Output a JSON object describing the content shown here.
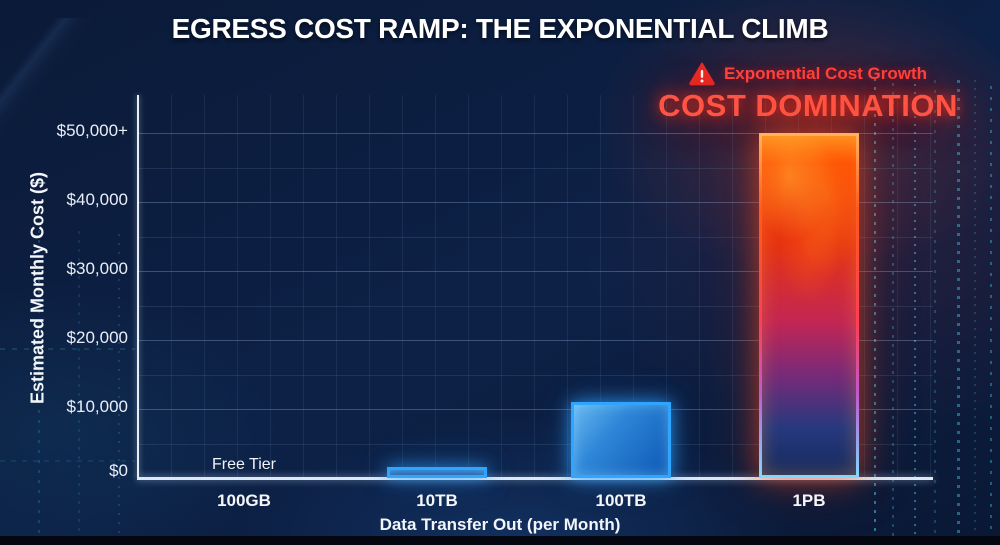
{
  "header": {
    "title": "EGRESS COST RAMP: THE EXPONENTIAL CLIMB"
  },
  "callouts": {
    "warning_label": "Exponential Cost Growth",
    "domination_label": "COST DOMINATION",
    "free_tier_label": "Free Tier"
  },
  "chart_data": {
    "type": "bar",
    "title": "EGRESS COST RAMP: THE EXPONENTIAL CLIMB",
    "xlabel": "Data Transfer Out (per Month)",
    "ylabel": "Estimated Monthly Cost ($)",
    "categories": [
      "100GB",
      "10TB",
      "100TB",
      "1PB"
    ],
    "values": [
      0,
      1600,
      11000,
      50000
    ],
    "bar_styles": [
      "none",
      "blue short",
      "blue",
      "fire"
    ],
    "yticks": [
      {
        "value": 0,
        "label": "$0"
      },
      {
        "value": 10000,
        "label": "$10,000"
      },
      {
        "value": 20000,
        "label": "$20,000"
      },
      {
        "value": 30000,
        "label": "$30,000"
      },
      {
        "value": 40000,
        "label": "$40,000"
      },
      {
        "value": 50000,
        "label": "$50,000+"
      }
    ],
    "ylim": [
      0,
      50000
    ],
    "grid": true,
    "legend": false,
    "annotations": [
      {
        "text": "Free Tier",
        "at_category": "100GB"
      },
      {
        "text": "Exponential Cost Growth",
        "near_category": "1PB"
      },
      {
        "text": "COST DOMINATION",
        "near_category": "1PB"
      }
    ]
  },
  "colors": {
    "background_navy": "#0c1d40",
    "axis_line": "#e8eef6",
    "grid_line": "#a5c8ee",
    "bar_blue_border": "#2fa5ff",
    "bar_blue_fill": "#1565c8",
    "bar_fire_top": "#ff6a00",
    "bar_fire_bottom": "#152a5e",
    "alert_red": "#ff5444",
    "rain_cyan": "#50e1ff",
    "text_white": "#ffffff"
  }
}
